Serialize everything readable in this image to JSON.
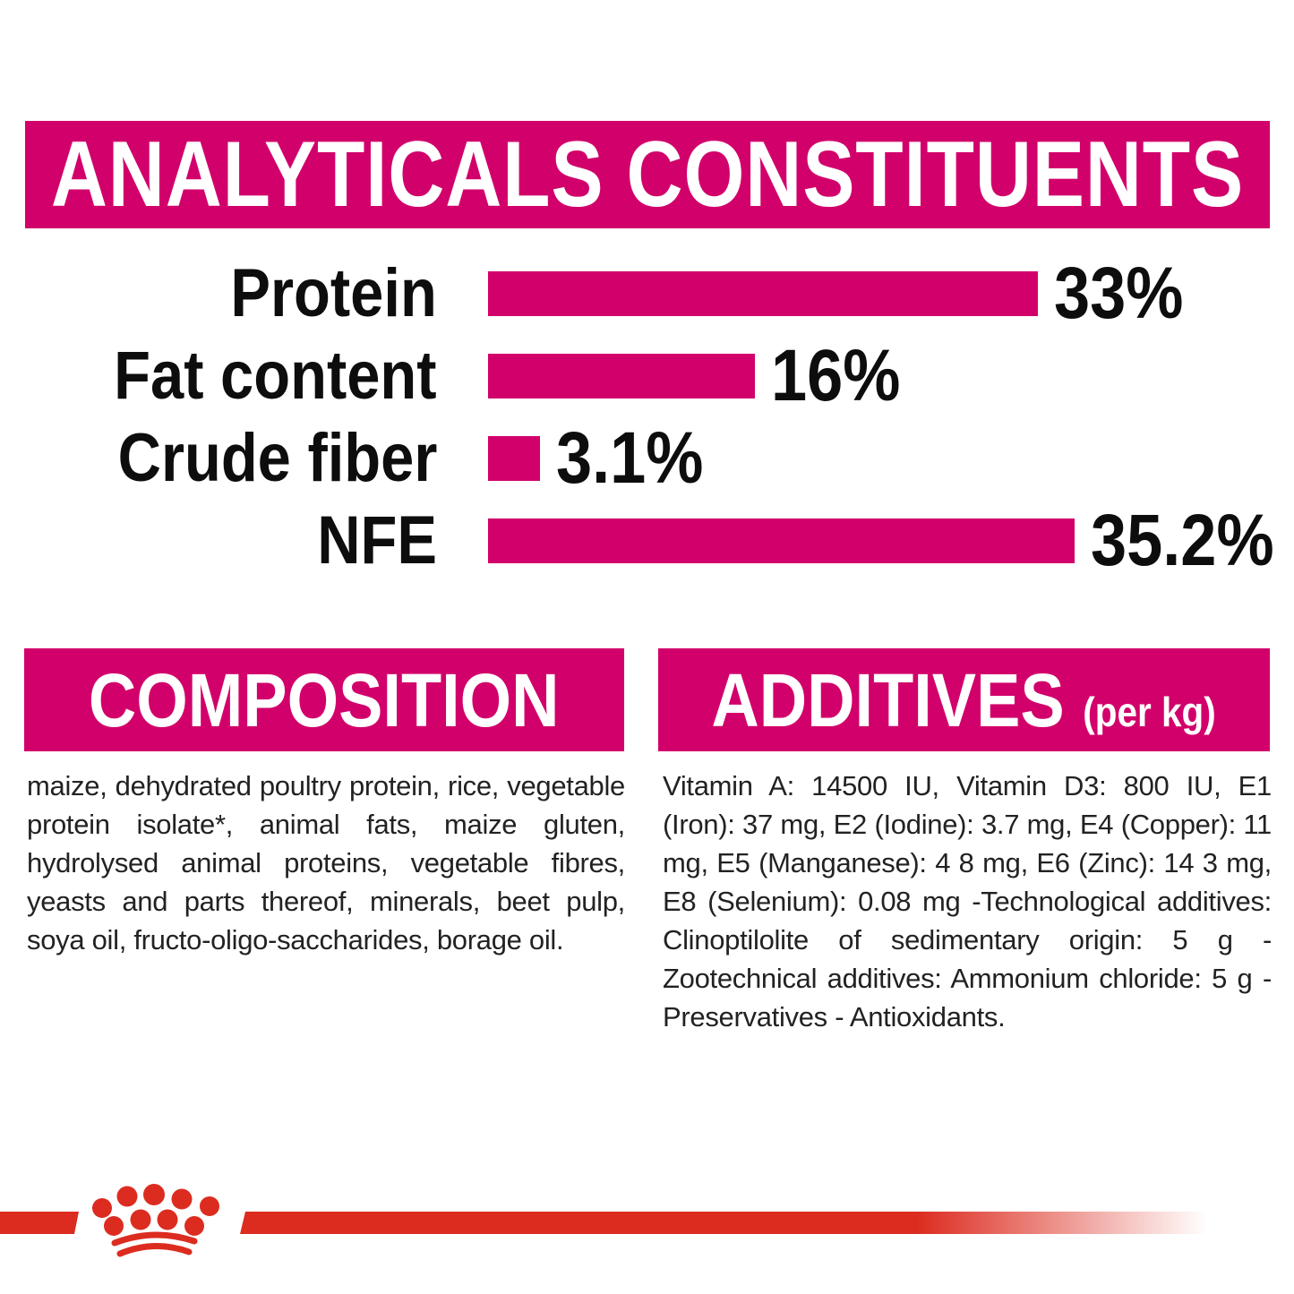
{
  "colors": {
    "magenta": "#D2006B",
    "red": "#DC2C20",
    "label_text": "#0d0d0d",
    "body_text": "#222222",
    "white": "#ffffff"
  },
  "header": {
    "title": "ANALYTICALS CONSTITUENTS"
  },
  "chart_data": {
    "type": "bar",
    "orientation": "horizontal",
    "title": "ANALYTICALS CONSTITUENTS",
    "categories": [
      "Protein",
      "Fat content",
      "Crude fiber",
      "NFE"
    ],
    "values": [
      33,
      16,
      3.1,
      35.2
    ],
    "value_labels": [
      "33%",
      "16%",
      "3.1%",
      "35.2%"
    ],
    "unit": "%",
    "xlim": [
      0,
      36
    ],
    "bar_color": "#D2006B",
    "grid": "off",
    "legend": "none"
  },
  "composition": {
    "title": "COMPOSITION",
    "body": "maize, dehydrated poultry protein, rice, vegetable protein isolate*, animal fats, maize gluten, hydrolysed animal proteins, vegetable fibres, yeasts and parts thereof, minerals, beet pulp, soya oil, fructo-oligo-saccharides, borage oil."
  },
  "additives": {
    "title": "ADDITIVES",
    "subtitle": "(per kg)",
    "body": "Vitamin A: 14500 IU, Vitamin D3: 800 IU, E1 (Iron): 37 mg, E2 (Iodine): 3.7 mg, E4 (Copper): 11 mg, E5 (Manganese): 4 8 mg, E6 (Zinc): 14 3 mg, E8 (Selenium): 0.08 mg -Technological additives: Clinoptilolite of sedimentary origin: 5 g - Zootechnical additives: Ammonium chloride: 5 g - Preservatives - Antioxidants."
  },
  "footer": {
    "logo": "royal-canin-crown"
  }
}
